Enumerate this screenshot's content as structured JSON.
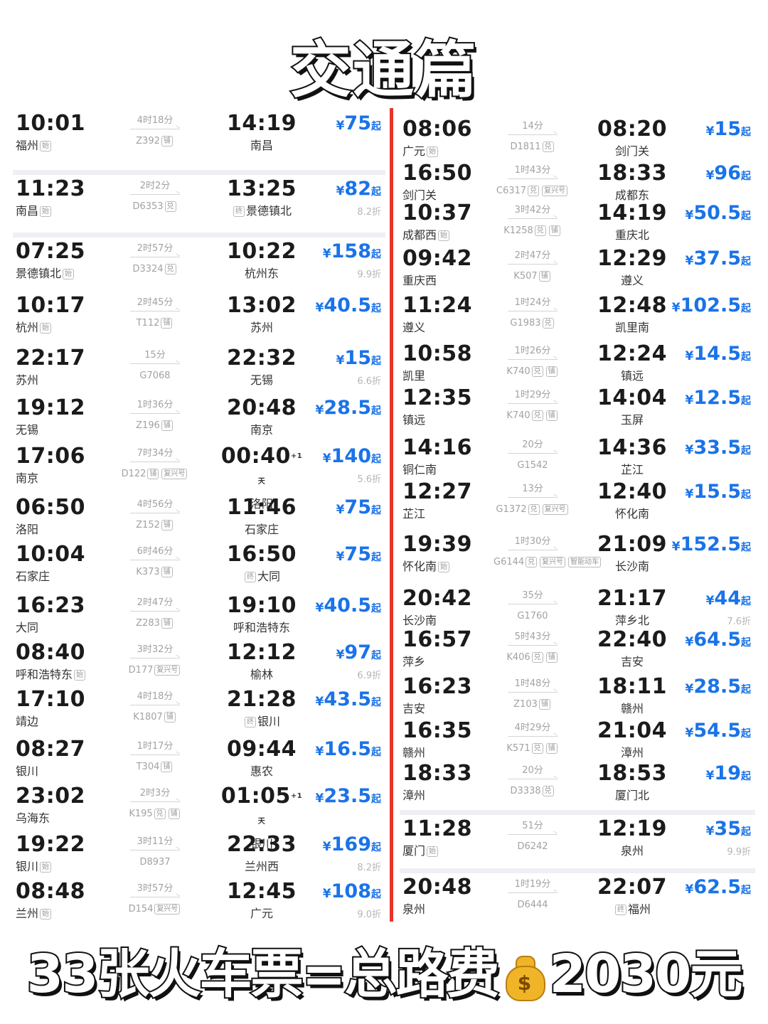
{
  "title": "交通篇",
  "footer": {
    "text_before": "33张火车票=总路费",
    "icon": "money-bag-icon",
    "symbol": "$",
    "text_after": "2030元"
  },
  "colors": {
    "divider": "#e8342b",
    "price": "#1a73e8"
  },
  "left": [
    {
      "dep_time": "10:01",
      "dep_station": "福州",
      "dep_tag": "始",
      "duration": "4时18分",
      "train": "Z392",
      "train_tags": [
        "铺"
      ],
      "arr_time": "14:19",
      "arr_station": "南昌",
      "arr_tag": "",
      "plus": "",
      "price": "75",
      "discount": ""
    },
    {
      "dep_time": "11:23",
      "dep_station": "南昌",
      "dep_tag": "始",
      "duration": "2时2分",
      "train": "D6353",
      "train_tags": [
        "兑"
      ],
      "arr_time": "13:25",
      "arr_station": "景德镇北",
      "arr_tag": "终",
      "plus": "",
      "price": "82",
      "discount": "8.2折"
    },
    {
      "dep_time": "07:25",
      "dep_station": "景德镇北",
      "dep_tag": "始",
      "duration": "2时57分",
      "train": "D3324",
      "train_tags": [
        "兑"
      ],
      "arr_time": "10:22",
      "arr_station": "杭州东",
      "arr_tag": "",
      "plus": "",
      "price": "158",
      "discount": "9.9折"
    },
    {
      "dep_time": "10:17",
      "dep_station": "杭州",
      "dep_tag": "始",
      "duration": "2时45分",
      "train": "T112",
      "train_tags": [
        "铺"
      ],
      "arr_time": "13:02",
      "arr_station": "苏州",
      "arr_tag": "",
      "plus": "",
      "price": "40.5",
      "discount": ""
    },
    {
      "dep_time": "22:17",
      "dep_station": "苏州",
      "dep_tag": "",
      "duration": "15分",
      "train": "G7068",
      "train_tags": [],
      "arr_time": "22:32",
      "arr_station": "无锡",
      "arr_tag": "",
      "plus": "",
      "price": "15",
      "discount": "6.6折"
    },
    {
      "dep_time": "19:12",
      "dep_station": "无锡",
      "dep_tag": "",
      "duration": "1时36分",
      "train": "Z196",
      "train_tags": [
        "铺"
      ],
      "arr_time": "20:48",
      "arr_station": "南京",
      "arr_tag": "",
      "plus": "",
      "price": "28.5",
      "discount": ""
    },
    {
      "dep_time": "17:06",
      "dep_station": "南京",
      "dep_tag": "",
      "duration": "7时34分",
      "train": "D122",
      "train_tags": [
        "铺",
        "复兴号"
      ],
      "arr_time": "00:40",
      "arr_station": "洛阳",
      "arr_tag": "",
      "plus": "+1天",
      "price": "140",
      "discount": "5.6折"
    },
    {
      "dep_time": "06:50",
      "dep_station": "洛阳",
      "dep_tag": "",
      "duration": "4时56分",
      "train": "Z152",
      "train_tags": [
        "铺"
      ],
      "arr_time": "11:46",
      "arr_station": "石家庄",
      "arr_tag": "",
      "plus": "",
      "price": "75",
      "discount": ""
    },
    {
      "dep_time": "10:04",
      "dep_station": "石家庄",
      "dep_tag": "",
      "duration": "6时46分",
      "train": "K373",
      "train_tags": [
        "铺"
      ],
      "arr_time": "16:50",
      "arr_station": "大同",
      "arr_tag": "终",
      "plus": "",
      "price": "75",
      "discount": ""
    },
    {
      "dep_time": "16:23",
      "dep_station": "大同",
      "dep_tag": "",
      "duration": "2时47分",
      "train": "Z283",
      "train_tags": [
        "铺"
      ],
      "arr_time": "19:10",
      "arr_station": "呼和浩特东",
      "arr_tag": "",
      "plus": "",
      "price": "40.5",
      "discount": ""
    },
    {
      "dep_time": "08:40",
      "dep_station": "呼和浩特东",
      "dep_tag": "始",
      "duration": "3时32分",
      "train": "D177",
      "train_tags": [
        "复兴号"
      ],
      "arr_time": "12:12",
      "arr_station": "榆林",
      "arr_tag": "",
      "plus": "",
      "price": "97",
      "discount": "6.9折"
    },
    {
      "dep_time": "17:10",
      "dep_station": "靖边",
      "dep_tag": "",
      "duration": "4时18分",
      "train": "K1807",
      "train_tags": [
        "铺"
      ],
      "arr_time": "21:28",
      "arr_station": "银川",
      "arr_tag": "终",
      "plus": "",
      "price": "43.5",
      "discount": ""
    },
    {
      "dep_time": "08:27",
      "dep_station": "银川",
      "dep_tag": "",
      "duration": "1时17分",
      "train": "T304",
      "train_tags": [
        "铺"
      ],
      "arr_time": "09:44",
      "arr_station": "惠农",
      "arr_tag": "",
      "plus": "",
      "price": "16.5",
      "discount": ""
    },
    {
      "dep_time": "23:02",
      "dep_station": "乌海东",
      "dep_tag": "",
      "duration": "2时3分",
      "train": "K195",
      "train_tags": [
        "兑",
        "铺"
      ],
      "arr_time": "01:05",
      "arr_station": "银川",
      "arr_tag": "",
      "plus": "+1天",
      "price": "23.5",
      "discount": ""
    },
    {
      "dep_time": "19:22",
      "dep_station": "银川",
      "dep_tag": "始",
      "duration": "3时11分",
      "train": "D8937",
      "train_tags": [],
      "arr_time": "22:33",
      "arr_station": "兰州西",
      "arr_tag": "",
      "plus": "",
      "price": "169",
      "discount": "8.2折"
    },
    {
      "dep_time": "08:48",
      "dep_station": "兰州",
      "dep_tag": "始",
      "duration": "3时57分",
      "train": "D154",
      "train_tags": [
        "复兴号"
      ],
      "arr_time": "12:45",
      "arr_station": "广元",
      "arr_tag": "",
      "plus": "",
      "price": "108",
      "discount": "9.0折"
    }
  ],
  "right": [
    {
      "dep_time": "08:06",
      "dep_station": "广元",
      "dep_tag": "始",
      "duration": "14分",
      "train": "D1811",
      "train_tags": [
        "兑"
      ],
      "arr_time": "08:20",
      "arr_station": "剑门关",
      "arr_tag": "",
      "plus": "",
      "price": "15",
      "discount": ""
    },
    {
      "dep_time": "16:50",
      "dep_station": "剑门关",
      "dep_tag": "",
      "duration": "1时43分",
      "train": "C6317",
      "train_tags": [
        "兑",
        "复兴号"
      ],
      "arr_time": "18:33",
      "arr_station": "成都东",
      "arr_tag": "",
      "plus": "",
      "price": "96",
      "discount": ""
    },
    {
      "dep_time": "10:37",
      "dep_station": "成都西",
      "dep_tag": "始",
      "duration": "3时42分",
      "train": "K1258",
      "train_tags": [
        "兑",
        "铺"
      ],
      "arr_time": "14:19",
      "arr_station": "重庆北",
      "arr_tag": "",
      "plus": "",
      "price": "50.5",
      "discount": ""
    },
    {
      "dep_time": "09:42",
      "dep_station": "重庆西",
      "dep_tag": "",
      "duration": "2时47分",
      "train": "K507",
      "train_tags": [
        "铺"
      ],
      "arr_time": "12:29",
      "arr_station": "遵义",
      "arr_tag": "",
      "plus": "",
      "price": "37.5",
      "discount": ""
    },
    {
      "dep_time": "11:24",
      "dep_station": "遵义",
      "dep_tag": "",
      "duration": "1时24分",
      "train": "G1983",
      "train_tags": [
        "兑"
      ],
      "arr_time": "12:48",
      "arr_station": "凯里南",
      "arr_tag": "",
      "plus": "",
      "price": "102.5",
      "discount": ""
    },
    {
      "dep_time": "10:58",
      "dep_station": "凯里",
      "dep_tag": "",
      "duration": "1时26分",
      "train": "K740",
      "train_tags": [
        "兑",
        "铺"
      ],
      "arr_time": "12:24",
      "arr_station": "镇远",
      "arr_tag": "",
      "plus": "",
      "price": "14.5",
      "discount": ""
    },
    {
      "dep_time": "12:35",
      "dep_station": "镇远",
      "dep_tag": "",
      "duration": "1时29分",
      "train": "K740",
      "train_tags": [
        "兑",
        "铺"
      ],
      "arr_time": "14:04",
      "arr_station": "玉屏",
      "arr_tag": "",
      "plus": "",
      "price": "12.5",
      "discount": ""
    },
    {
      "dep_time": "14:16",
      "dep_station": "铜仁南",
      "dep_tag": "",
      "duration": "20分",
      "train": "G1542",
      "train_tags": [],
      "arr_time": "14:36",
      "arr_station": "芷江",
      "arr_tag": "",
      "plus": "",
      "price": "33.5",
      "discount": ""
    },
    {
      "dep_time": "12:27",
      "dep_station": "芷江",
      "dep_tag": "",
      "duration": "13分",
      "train": "G1372",
      "train_tags": [
        "兑",
        "复兴号"
      ],
      "arr_time": "12:40",
      "arr_station": "怀化南",
      "arr_tag": "",
      "plus": "",
      "price": "15.5",
      "discount": ""
    },
    {
      "dep_time": "19:39",
      "dep_station": "怀化南",
      "dep_tag": "始",
      "duration": "1时30分",
      "train": "G6144",
      "train_tags": [
        "兑",
        "复兴号",
        "智能动车"
      ],
      "arr_time": "21:09",
      "arr_station": "长沙南",
      "arr_tag": "",
      "plus": "",
      "price": "152.5",
      "discount": ""
    },
    {
      "dep_time": "20:42",
      "dep_station": "长沙南",
      "dep_tag": "",
      "duration": "35分",
      "train": "G1760",
      "train_tags": [],
      "arr_time": "21:17",
      "arr_station": "萍乡北",
      "arr_tag": "",
      "plus": "",
      "price": "44",
      "discount": "7.6折"
    },
    {
      "dep_time": "16:57",
      "dep_station": "萍乡",
      "dep_tag": "",
      "duration": "5时43分",
      "train": "K406",
      "train_tags": [
        "兑",
        "铺"
      ],
      "arr_time": "22:40",
      "arr_station": "吉安",
      "arr_tag": "",
      "plus": "",
      "price": "64.5",
      "discount": ""
    },
    {
      "dep_time": "16:23",
      "dep_station": "吉安",
      "dep_tag": "",
      "duration": "1时48分",
      "train": "Z103",
      "train_tags": [
        "铺"
      ],
      "arr_time": "18:11",
      "arr_station": "赣州",
      "arr_tag": "",
      "plus": "",
      "price": "28.5",
      "discount": ""
    },
    {
      "dep_time": "16:35",
      "dep_station": "赣州",
      "dep_tag": "",
      "duration": "4时29分",
      "train": "K571",
      "train_tags": [
        "兑",
        "铺"
      ],
      "arr_time": "21:04",
      "arr_station": "漳州",
      "arr_tag": "",
      "plus": "",
      "price": "54.5",
      "discount": ""
    },
    {
      "dep_time": "18:33",
      "dep_station": "漳州",
      "dep_tag": "",
      "duration": "20分",
      "train": "D3338",
      "train_tags": [
        "兑"
      ],
      "arr_time": "18:53",
      "arr_station": "厦门北",
      "arr_tag": "",
      "plus": "",
      "price": "19",
      "discount": ""
    },
    {
      "dep_time": "11:28",
      "dep_station": "厦门",
      "dep_tag": "始",
      "duration": "51分",
      "train": "D6242",
      "train_tags": [],
      "arr_time": "12:19",
      "arr_station": "泉州",
      "arr_tag": "",
      "plus": "",
      "price": "35",
      "discount": "9.9折"
    },
    {
      "dep_time": "20:48",
      "dep_station": "泉州",
      "dep_tag": "",
      "duration": "1时19分",
      "train": "D6444",
      "train_tags": [],
      "arr_time": "22:07",
      "arr_station": "福州",
      "arr_tag": "终",
      "plus": "",
      "price": "62.5",
      "discount": ""
    }
  ],
  "currency": "¥",
  "price_suffix": "起"
}
